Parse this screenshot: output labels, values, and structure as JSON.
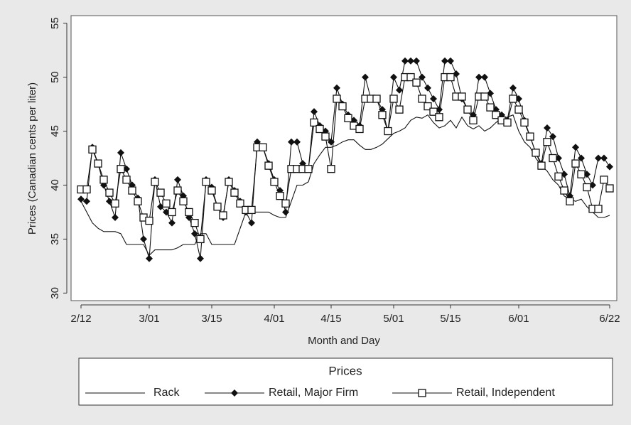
{
  "chart_data": {
    "type": "line",
    "x_label": "Month and Day",
    "y_label": "Prices (Canadian cents per liter)",
    "legend_title": "Prices",
    "legend_position": "bottom",
    "categories": [
      "2/12",
      null,
      null,
      null,
      null,
      null,
      null,
      null,
      null,
      null,
      null,
      null,
      "3/01",
      null,
      null,
      null,
      null,
      null,
      null,
      null,
      null,
      null,
      null,
      "3/15",
      null,
      null,
      null,
      null,
      null,
      null,
      null,
      null,
      null,
      null,
      "4/01",
      null,
      null,
      null,
      null,
      null,
      null,
      null,
      null,
      null,
      "4/15",
      null,
      null,
      null,
      null,
      null,
      null,
      null,
      null,
      null,
      null,
      "5/01",
      null,
      null,
      null,
      null,
      null,
      null,
      null,
      null,
      null,
      "5/15",
      null,
      null,
      null,
      null,
      null,
      null,
      null,
      null,
      null,
      null,
      null,
      "6/01",
      null,
      null,
      null,
      null,
      null,
      null,
      null,
      null,
      null,
      null,
      null,
      null,
      null,
      null,
      null,
      "6/22"
    ],
    "ylim": [
      29.3,
      55.7
    ],
    "yticks": [
      30,
      35,
      40,
      45,
      50,
      55
    ],
    "series": [
      {
        "name": "Rack",
        "color": "#111111",
        "marker": "none",
        "values": [
          38.5,
          37.5,
          36.5,
          36,
          35.7,
          35.7,
          35.7,
          35.5,
          34.5,
          34.5,
          34.5,
          34.5,
          33.5,
          34,
          34,
          34,
          34,
          34.2,
          34.5,
          34.5,
          34.5,
          35.5,
          35.5,
          34.5,
          34.5,
          34.5,
          34.5,
          34.5,
          36,
          37.5,
          37.5,
          37.5,
          37.5,
          37.5,
          37.2,
          37,
          37,
          38.5,
          40,
          40,
          40.3,
          42,
          42.8,
          43.5,
          43.5,
          43.7,
          44,
          44.2,
          44.2,
          43.7,
          43.3,
          43.3,
          43.5,
          43.8,
          44.3,
          44.8,
          45,
          45.3,
          46,
          46.3,
          46.2,
          46.5,
          45.8,
          45.3,
          45.5,
          46,
          45.3,
          46.3,
          45.5,
          45.2,
          45.5,
          45,
          45.3,
          45.8,
          46.2,
          46.3,
          46.5,
          45,
          44,
          43.5,
          42.5,
          41.8,
          41.3,
          40.5,
          40,
          39,
          38.7,
          38.5,
          38.7,
          38,
          37.5,
          37,
          37,
          37.2
        ]
      },
      {
        "name": "Retail, Major Firm",
        "color": "#111111",
        "marker": "diamond",
        "values": [
          38.7,
          38.5,
          43.5,
          42,
          40,
          38.5,
          37,
          43,
          41.5,
          40,
          38.8,
          35,
          33.2,
          40.5,
          38,
          37.5,
          36.5,
          40.5,
          39,
          37,
          35.5,
          33.2,
          40.5,
          39.8,
          38,
          37,
          40.5,
          39.5,
          38.5,
          37.5,
          36.5,
          44,
          43.5,
          42,
          40.5,
          39.5,
          37.5,
          44,
          44,
          42,
          41.5,
          46.8,
          45.5,
          45,
          44,
          49,
          47.5,
          46.5,
          46,
          45.5,
          50,
          48,
          48,
          47,
          45,
          50,
          48.8,
          51.5,
          51.5,
          51.5,
          50,
          49,
          48,
          47,
          51.5,
          51.5,
          50.3,
          48,
          47,
          46.5,
          50,
          50,
          48.5,
          47,
          46.5,
          46,
          49,
          48,
          46,
          44.5,
          43,
          42,
          45.3,
          44.5,
          42.5,
          41,
          39,
          43.5,
          42.5,
          41,
          40,
          42.5,
          42.5,
          41.7
        ]
      },
      {
        "name": "Retail, Independent",
        "color": "#111111",
        "marker": "square",
        "values": [
          39.6,
          39.6,
          43.3,
          42,
          40.5,
          39.3,
          38.3,
          41.5,
          40.5,
          39.5,
          38.5,
          37,
          36.7,
          40.3,
          39.3,
          38.3,
          37.5,
          39.5,
          38.5,
          37.5,
          36.5,
          35,
          40.3,
          39.5,
          38,
          37.2,
          40.3,
          39.3,
          38.3,
          37.7,
          37.7,
          43.5,
          43.5,
          41.8,
          40.3,
          39,
          38.3,
          41.5,
          41.5,
          41.5,
          41.5,
          45.8,
          45.2,
          44.5,
          41.5,
          48,
          47.3,
          46.2,
          45.5,
          45.2,
          48,
          48,
          48,
          46.5,
          45,
          48,
          47,
          50,
          50,
          49.5,
          48,
          47.3,
          46.8,
          46.3,
          50,
          50,
          48.2,
          48.2,
          47,
          46,
          48.2,
          48.2,
          47.2,
          46.5,
          46,
          45.8,
          48,
          47,
          45.8,
          44.5,
          43,
          41.8,
          44,
          42.5,
          40.8,
          39.5,
          38.5,
          42,
          41,
          39.8,
          37.8,
          37.8,
          40.5,
          39.7
        ]
      }
    ]
  }
}
